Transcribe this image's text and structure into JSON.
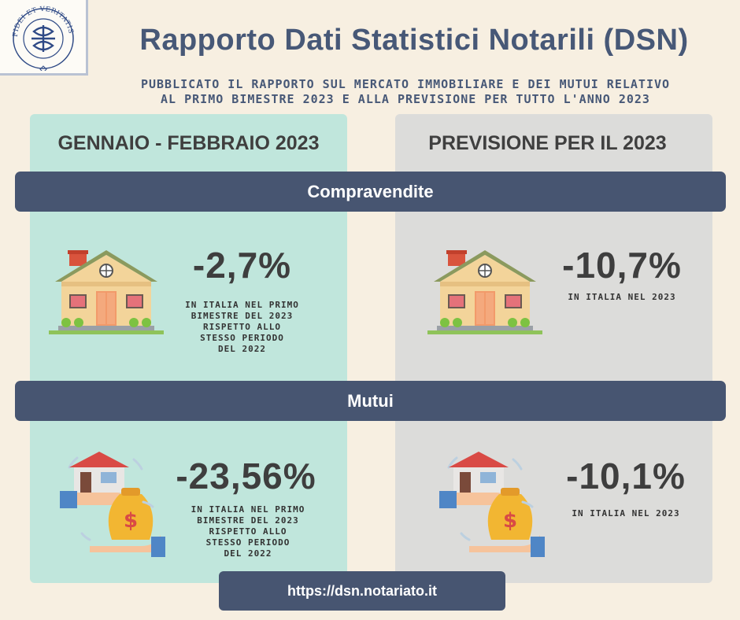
{
  "logo": {
    "motto": "FIDEI ET VERITATIS ANCHORA",
    "icon": "notary-seal-icon"
  },
  "header": {
    "title": "Rapporto Dati Statistici Notarili (DSN)",
    "subtitle_line1": "PUBBLICATO IL RAPPORTO SUL MERCATO IMMOBILIARE E DEI MUTUI RELATIVO",
    "subtitle_line2": "AL PRIMO BIMESTRE 2023 E ALLA PREVISIONE PER TUTTO L'ANNO 2023"
  },
  "columns": {
    "left_title": "GENNAIO - FEBBRAIO 2023",
    "right_title": "PREVISIONE PER IL 2023"
  },
  "sections": {
    "compravendite": {
      "label": "Compravendite",
      "icon": "house-icon",
      "left_value": "-2,7%",
      "left_desc": [
        "IN ITALIA NEL PRIMO",
        "BIMESTRE DEL 2023",
        "RISPETTO ALLO",
        "STESSO PERIODO",
        "DEL 2022"
      ],
      "right_value": "-10,7%",
      "right_desc": [
        "IN ITALIA NEL 2023"
      ]
    },
    "mutui": {
      "label": "Mutui",
      "icon": "mortgage-money-bag-icon",
      "left_value": "-23,56%",
      "left_desc": [
        "IN ITALIA NEL PRIMO",
        "BIMESTRE DEL 2023",
        "RISPETTO ALLO",
        "STESSO PERIODO",
        "DEL 2022"
      ],
      "right_value": "-10,1%",
      "right_desc": [
        "IN ITALIA NEL 2023"
      ]
    }
  },
  "footer": {
    "link": "https://dsn.notariato.it"
  },
  "colors": {
    "background": "#f7efe1",
    "left_panel": "#c0e6dc",
    "right_panel": "#dcdcda",
    "bar": "#475571",
    "title": "#475877"
  }
}
